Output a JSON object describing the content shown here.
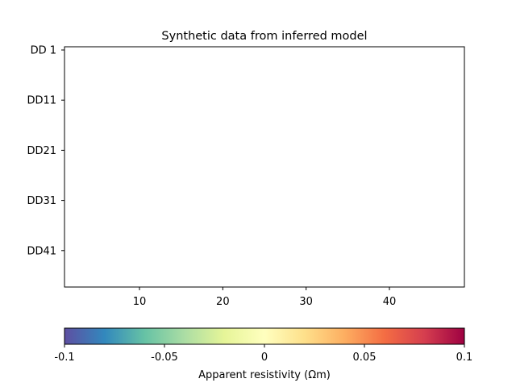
{
  "chart_data": {
    "type": "heatmap",
    "title": "Synthetic data from inferred model",
    "xlim": [
      1,
      49
    ],
    "x_ticks": [
      10,
      20,
      30,
      40
    ],
    "y_ticks": [
      "DD 1",
      "DD11",
      "DD21",
      "DD31",
      "DD41"
    ],
    "values": [],
    "grid": false,
    "colorbar": {
      "label": "Apparent resistivity (Ωm)",
      "range": [
        -0.1,
        0.1
      ],
      "ticks": [
        -0.1,
        -0.05,
        0,
        0.05,
        0.1
      ],
      "tick_labels": [
        "-0.1",
        "-0.05",
        "0",
        "0.05",
        "0.1"
      ],
      "colormap": "Spectral_r",
      "colors": [
        "#5e4fa2",
        "#3288bd",
        "#66c2a5",
        "#abdda4",
        "#e6f598",
        "#ffffbf",
        "#fee08b",
        "#fdae61",
        "#f46d43",
        "#d53e4f",
        "#9e0142"
      ]
    }
  }
}
